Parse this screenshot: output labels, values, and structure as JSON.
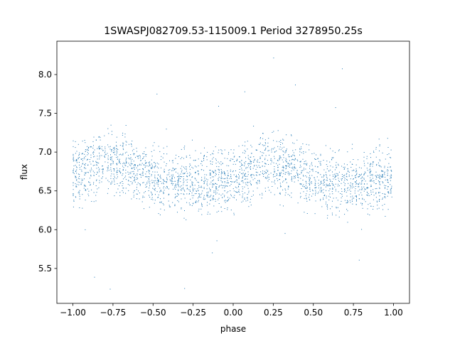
{
  "chart_data": {
    "type": "scatter",
    "title": "1SWASPJ082709.53-115009.1 Period 3278950.25s",
    "xlabel": "phase",
    "ylabel": "flux",
    "xlim": [
      -1.1,
      1.1
    ],
    "ylim": [
      5.05,
      8.43
    ],
    "x_ticks": [
      -1.0,
      -0.75,
      -0.5,
      -0.25,
      0.0,
      0.25,
      0.5,
      0.75,
      1.0
    ],
    "x_tick_labels": [
      "−1.00",
      "−0.75",
      "−0.50",
      "−0.25",
      "0.00",
      "0.25",
      "0.50",
      "0.75",
      "1.00"
    ],
    "y_ticks": [
      5.5,
      6.0,
      6.5,
      7.0,
      7.5,
      8.0
    ],
    "y_tick_labels": [
      "5.5",
      "6.0",
      "6.5",
      "7.0",
      "7.5",
      "8.0"
    ],
    "grid": false,
    "marker_color": "#1f77b4",
    "series": [
      {
        "x_range": [
          -1.0,
          1.0
        ],
        "phase_flux_profile": {
          "phase": [
            -1.0,
            -0.75,
            -0.5,
            -0.25,
            0.0,
            0.25,
            0.5,
            0.75,
            1.0
          ],
          "flux": [
            6.7,
            6.9,
            6.65,
            6.6,
            6.65,
            6.9,
            6.65,
            6.6,
            6.7
          ]
        },
        "flux_spread": 0.35,
        "flux_extremes": [
          5.2,
          8.3
        ]
      }
    ]
  }
}
